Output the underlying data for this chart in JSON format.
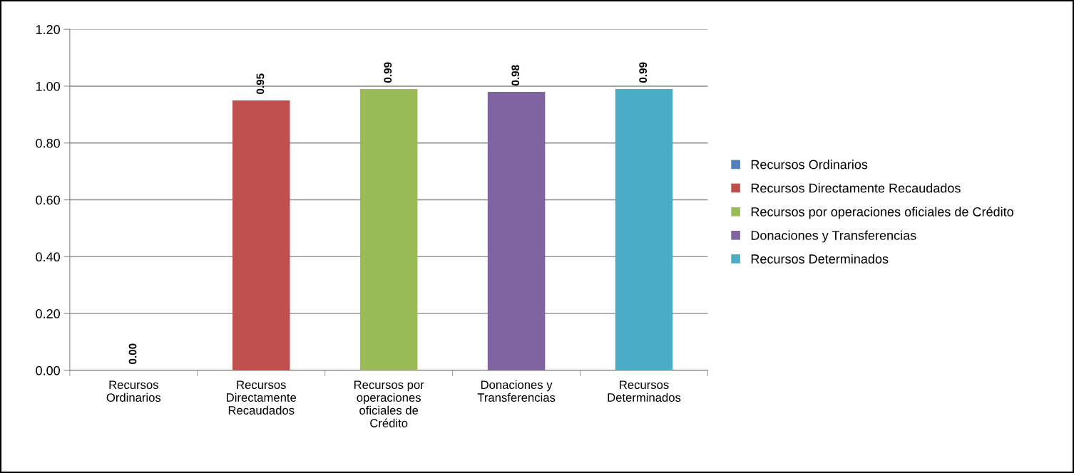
{
  "chart_data": {
    "type": "bar",
    "categories": [
      "Recursos Ordinarios",
      "Recursos Directamente Recaudados",
      "Recursos por operaciones oficiales de Crédito",
      "Donaciones y Transferencias",
      "Recursos Determinados"
    ],
    "series": [
      {
        "name": "Recursos Ordinarios",
        "color": "#4f81bd",
        "values": [
          0.0,
          null,
          null,
          null,
          null
        ],
        "value_labels": [
          "0.00",
          null,
          null,
          null,
          null
        ]
      },
      {
        "name": "Recursos Directamente Recaudados",
        "color": "#c0504d",
        "values": [
          null,
          0.95,
          null,
          null,
          null
        ],
        "value_labels": [
          null,
          "0.95",
          null,
          null,
          null
        ]
      },
      {
        "name": "Recursos por operaciones oficiales de Crédito",
        "color": "#9bbb59",
        "values": [
          null,
          null,
          0.99,
          null,
          null
        ],
        "value_labels": [
          null,
          null,
          "0.99",
          null,
          null
        ]
      },
      {
        "name": "Donaciones y Transferencias",
        "color": "#8064a2",
        "values": [
          null,
          null,
          null,
          0.98,
          null
        ],
        "value_labels": [
          null,
          null,
          null,
          "0.98",
          null
        ]
      },
      {
        "name": "Recursos Determinados",
        "color": "#4bacc6",
        "values": [
          null,
          null,
          null,
          null,
          0.99
        ],
        "value_labels": [
          null,
          null,
          null,
          null,
          "0.99"
        ]
      }
    ],
    "ylim": [
      0,
      1.2
    ],
    "yticks": [
      {
        "value": 0,
        "label": "0.00"
      },
      {
        "value": 0.2,
        "label": "0.20"
      },
      {
        "value": 0.4,
        "label": "0.40"
      },
      {
        "value": 0.6,
        "label": "0.60"
      },
      {
        "value": 0.8,
        "label": "0.80"
      },
      {
        "value": 1.0,
        "label": "1.00"
      },
      {
        "value": 1.2,
        "label": "1.20"
      }
    ],
    "grid": "y",
    "legend": "right"
  }
}
